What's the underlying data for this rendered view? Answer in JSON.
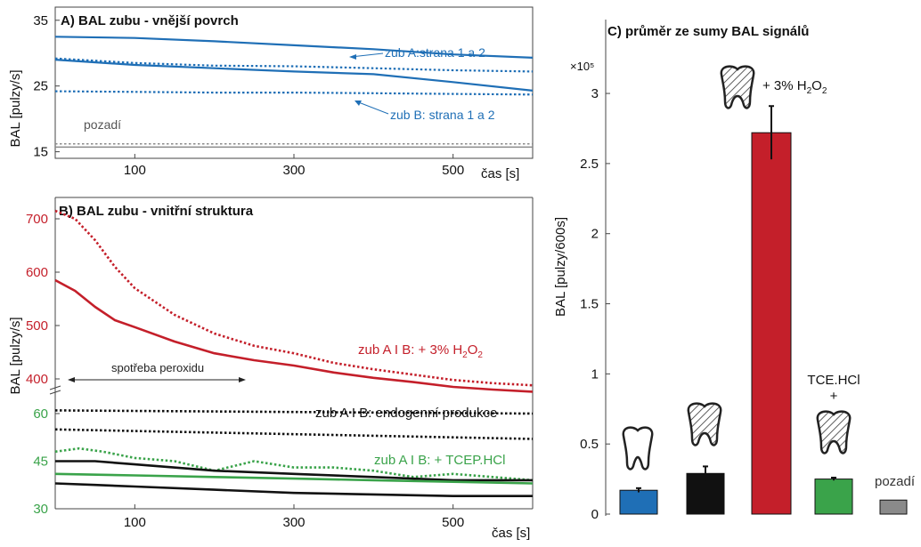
{
  "colors": {
    "blue": "#1f6fb6",
    "black": "#111111",
    "red": "#c41f2a",
    "green": "#3aa34a",
    "gray": "#8a8a8a",
    "axis": "#444444"
  },
  "chart_data": [
    {
      "panel": "A",
      "type": "line",
      "title": "A) BAL zubu - vnější povrch",
      "xlabel": "čas [s]",
      "ylabel": "BAL [pulzy/s]",
      "xlim": [
        0,
        600
      ],
      "ylim": [
        14,
        37
      ],
      "xticks": [
        100,
        300,
        500
      ],
      "yticks": [
        15,
        25,
        35
      ],
      "annotations": [
        "zub A:strana 1 a 2",
        "zub B: strana 1 a 2",
        "pozadí"
      ],
      "series": [
        {
          "color": "blue",
          "style": "solid",
          "x": [
            0,
            100,
            200,
            300,
            400,
            500,
            600
          ],
          "y": [
            32.5,
            32.3,
            31.8,
            31.2,
            30.6,
            29.8,
            29.3
          ]
        },
        {
          "color": "blue",
          "style": "solid",
          "x": [
            0,
            100,
            200,
            300,
            400,
            500,
            600
          ],
          "y": [
            29.0,
            28.2,
            27.7,
            27.2,
            26.8,
            25.6,
            24.3
          ]
        },
        {
          "color": "blue",
          "style": "dotted",
          "x": [
            0,
            100,
            200,
            300,
            400,
            500,
            600
          ],
          "y": [
            29.2,
            28.5,
            28.1,
            28.0,
            27.7,
            27.4,
            27.2
          ]
        },
        {
          "color": "blue",
          "style": "dotted",
          "x": [
            0,
            100,
            200,
            300,
            400,
            500,
            600
          ],
          "y": [
            24.2,
            24.1,
            24.0,
            24.0,
            23.9,
            23.8,
            23.7
          ]
        },
        {
          "color": "gray",
          "style": "dotted",
          "x": [
            0,
            600
          ],
          "y": [
            16.2,
            16.2
          ]
        },
        {
          "color": "gray",
          "style": "solid",
          "x": [
            0,
            600
          ],
          "y": [
            15.7,
            15.7
          ]
        }
      ]
    },
    {
      "panel": "B",
      "type": "line",
      "title": "B) BAL zubu - vnitřní struktura",
      "xlabel": "čas [s]",
      "ylabel": "BAL [pulzy/s]",
      "xlim": [
        0,
        600
      ],
      "xticks": [
        100,
        300,
        500
      ],
      "upper_axis": {
        "ylim": [
          380,
          740
        ],
        "yticks": [
          400,
          500,
          600,
          700
        ],
        "color": "red"
      },
      "lower_axis": {
        "ylim": [
          30,
          67
        ],
        "yticks": [
          30,
          45,
          60
        ],
        "color": "green"
      },
      "annotations": {
        "red_label": {
          "main": "zub A I B: + 3% H",
          "sub": "2",
          "tail": "O",
          "sub2": "2"
        },
        "black_label": "zub A I B: endogenní produkce",
        "green_label": "zub A I B: + TCEP.HCl",
        "arrow_label": "spotřeba peroxidu"
      },
      "series_upper": [
        {
          "color": "red",
          "style": "dotted",
          "x": [
            0,
            25,
            50,
            75,
            100,
            150,
            200,
            250,
            300,
            350,
            400,
            450,
            500,
            550,
            600
          ],
          "y": [
            715,
            700,
            660,
            610,
            570,
            520,
            485,
            462,
            448,
            430,
            418,
            408,
            398,
            392,
            388
          ]
        },
        {
          "color": "red",
          "style": "solid",
          "x": [
            0,
            25,
            50,
            75,
            100,
            150,
            200,
            250,
            300,
            350,
            400,
            450,
            500,
            550,
            600
          ],
          "y": [
            585,
            565,
            535,
            510,
            497,
            470,
            448,
            435,
            425,
            412,
            402,
            394,
            385,
            380,
            376
          ]
        }
      ],
      "series_lower": [
        {
          "color": "black",
          "style": "dotted",
          "x": [
            0,
            600
          ],
          "y": [
            61,
            60
          ]
        },
        {
          "color": "black",
          "style": "dotted",
          "x": [
            0,
            600
          ],
          "y": [
            55,
            52
          ]
        },
        {
          "color": "green",
          "style": "dotted",
          "x": [
            0,
            30,
            60,
            100,
            150,
            200,
            250,
            300,
            350,
            400,
            450,
            500,
            550,
            600
          ],
          "y": [
            48,
            49,
            48,
            46,
            45,
            42,
            45,
            43,
            43,
            42,
            40,
            41,
            40,
            39
          ]
        },
        {
          "color": "black",
          "style": "solid",
          "x": [
            0,
            50,
            100,
            200,
            300,
            400,
            500,
            600
          ],
          "y": [
            45,
            45,
            44,
            42,
            41,
            40,
            39,
            39
          ]
        },
        {
          "color": "green",
          "style": "solid",
          "x": [
            0,
            100,
            200,
            300,
            400,
            500,
            600
          ],
          "y": [
            41,
            40.5,
            40,
            39.5,
            39,
            38.5,
            38
          ]
        },
        {
          "color": "black",
          "style": "solid",
          "x": [
            0,
            50,
            100,
            200,
            300,
            400,
            500,
            600
          ],
          "y": [
            38,
            37.5,
            37,
            36,
            35,
            34.5,
            34,
            34
          ]
        }
      ]
    },
    {
      "panel": "C",
      "type": "bar",
      "title": "C) průměr ze sumy BAL signálů",
      "ylabel": "BAL [pulzy/600s]",
      "yscale_label": "×10⁵",
      "ylim": [
        0,
        3.4
      ],
      "yticks": [
        0,
        0.5,
        1,
        1.5,
        2,
        2.5,
        3
      ],
      "ytick_labels": [
        "0",
        "0.5",
        "1",
        "1.5",
        "2",
        "2.5",
        "3"
      ],
      "bars": [
        {
          "value": 0.17,
          "error": 0.015,
          "color": "blue"
        },
        {
          "value": 0.29,
          "error": 0.05,
          "color": "black"
        },
        {
          "value": 2.72,
          "error": 0.19,
          "color": "red"
        },
        {
          "value": 0.25,
          "error": 0.01,
          "color": "green"
        },
        {
          "value": 0.1,
          "error": 0.0,
          "color": "gray"
        }
      ],
      "labels": {
        "h2o2": {
          "main": "+ 3% H",
          "sub": "2",
          "tail": "O",
          "sub2": "2"
        },
        "tce": "TCE.HCl",
        "plus": "+",
        "background": "pozadí"
      },
      "icons": [
        "tooth-icon",
        "tooth-hatched-icon",
        "tooth-hatched-icon",
        "tooth-hatched-icon"
      ]
    }
  ]
}
